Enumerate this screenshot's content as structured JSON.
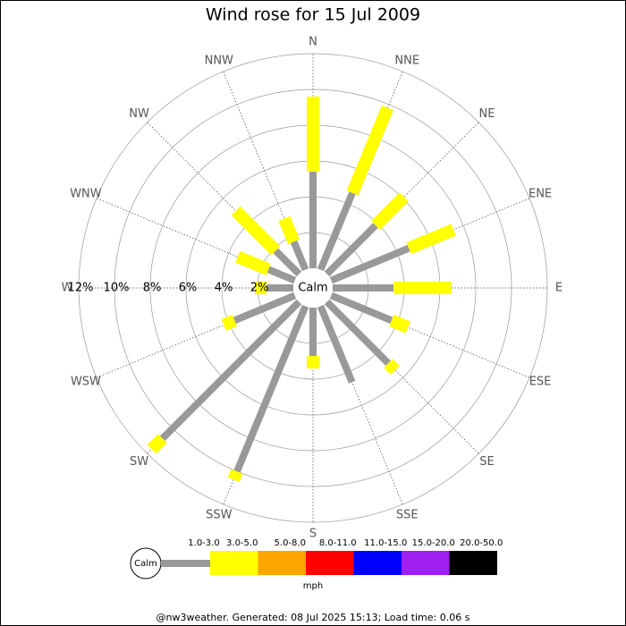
{
  "chart_data": {
    "type": "windrose",
    "title": "Wind rose for 15 Jul 2009",
    "directions": [
      "N",
      "NNE",
      "NE",
      "ENE",
      "E",
      "ESE",
      "SE",
      "SSE",
      "S",
      "SSW",
      "SW",
      "WSW",
      "W",
      "WNW",
      "NW",
      "NNW"
    ],
    "calm_label": "Calm",
    "unit": "mph",
    "ylim": [
      0,
      12
    ],
    "yticks": [
      {
        "value": 2,
        "label": "2%"
      },
      {
        "value": 4,
        "label": "4%"
      },
      {
        "value": 6,
        "label": "6%"
      },
      {
        "value": 8,
        "label": "8%"
      },
      {
        "value": 10,
        "label": "10%"
      },
      {
        "value": 12,
        "label": "12%"
      }
    ],
    "series": [
      {
        "name": "1.0-3.0",
        "color": "#999999",
        "values": [
          5.4,
          4.65,
          3.85,
          4.7,
          3.4,
          3.65,
          4.85,
          4.6,
          2.7,
          10.0,
          10.8,
          3.65,
          1.5,
          1.6,
          1.85,
          1.7
        ]
      },
      {
        "name": "3.0-5.0",
        "color": "#ffff00",
        "values": [
          4.2,
          5.15,
          2.25,
          2.7,
          3.25,
          1.0,
          0.55,
          0,
          0.7,
          0.5,
          0.85,
          0.65,
          0.65,
          1.85,
          3.15,
          1.4
        ]
      },
      {
        "name": "5.0-8.0",
        "color": "#ffa500",
        "values": [
          0,
          0,
          0,
          0,
          0,
          0,
          0,
          0,
          0,
          0,
          0,
          0,
          0,
          0,
          0,
          0
        ]
      },
      {
        "name": "8.0-11.0",
        "color": "#ff0000",
        "values": [
          0,
          0,
          0,
          0,
          0,
          0,
          0,
          0,
          0,
          0,
          0,
          0,
          0,
          0,
          0,
          0
        ]
      },
      {
        "name": "11.0-15.0",
        "color": "#0000ff",
        "values": [
          0,
          0,
          0,
          0,
          0,
          0,
          0,
          0,
          0,
          0,
          0,
          0,
          0,
          0,
          0,
          0
        ]
      },
      {
        "name": "15.0-20.0",
        "color": "#a020f0",
        "values": [
          0,
          0,
          0,
          0,
          0,
          0,
          0,
          0,
          0,
          0,
          0,
          0,
          0,
          0,
          0,
          0
        ]
      },
      {
        "name": "20.0-50.0",
        "color": "#000000",
        "values": [
          0,
          0,
          0,
          0,
          0,
          0,
          0,
          0,
          0,
          0,
          0,
          0,
          0,
          0,
          0,
          0
        ]
      }
    ],
    "footer": "@nw3weather.  Generated: 08 Jul 2025 15:13; Load time: 0.06 s"
  }
}
